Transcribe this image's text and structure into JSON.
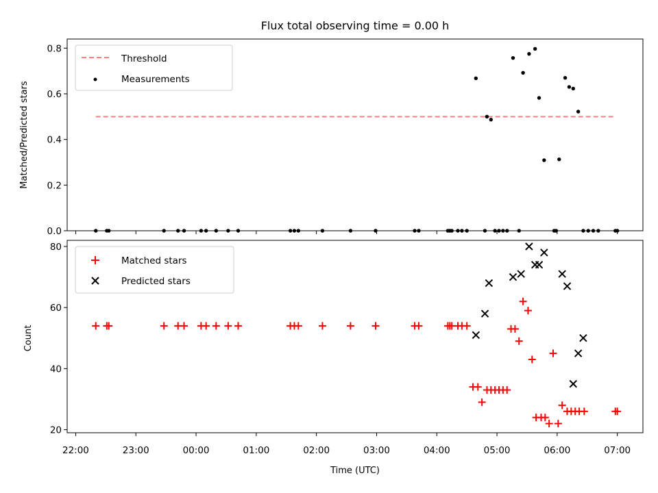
{
  "figure": {
    "title": "Flux total observing time = 0.00 h",
    "x_label": "Time (UTC)"
  },
  "colors": {
    "threshold": "#ff7f7f",
    "measurement": "#000000",
    "matched": "#ff0000",
    "predicted": "#000000",
    "axis": "#000000",
    "legend_border": "#cccccc"
  },
  "chart_data": [
    {
      "type": "scatter",
      "name": "ratio-panel",
      "ylabel": "Matched/Predicted stars",
      "xlabel": "",
      "xlim": [
        "22:00",
        "07:00"
      ],
      "ylim": [
        0,
        0.84
      ],
      "yticks": [
        0.0,
        0.2,
        0.4,
        0.6,
        0.8
      ],
      "ytick_labels": [
        "0.0",
        "0.2",
        "0.4",
        "0.6",
        "0.8"
      ],
      "grid": false,
      "legend_position": "top-left",
      "legend": [
        "Threshold",
        "Measurements"
      ],
      "threshold": {
        "name": "Threshold",
        "value": 0.5,
        "x_range": [
          "22:20",
          "06:58"
        ]
      },
      "series": [
        {
          "name": "Measurements",
          "points": [
            [
              "22:20",
              0.0
            ],
            [
              "22:31",
              0.0
            ],
            [
              "22:33",
              0.0
            ],
            [
              "23:28",
              0.0
            ],
            [
              "23:42",
              0.0
            ],
            [
              "23:48",
              0.0
            ],
            [
              "00:05",
              0.0
            ],
            [
              "00:10",
              0.0
            ],
            [
              "00:20",
              0.0
            ],
            [
              "00:32",
              0.0
            ],
            [
              "00:42",
              0.0
            ],
            [
              "01:34",
              0.0
            ],
            [
              "01:38",
              0.0
            ],
            [
              "01:42",
              0.0
            ],
            [
              "02:06",
              0.0
            ],
            [
              "02:34",
              0.0
            ],
            [
              "02:59",
              0.0
            ],
            [
              "03:38",
              0.0
            ],
            [
              "03:42",
              0.0
            ],
            [
              "04:11",
              0.0
            ],
            [
              "04:13",
              0.0
            ],
            [
              "04:15",
              0.0
            ],
            [
              "04:21",
              0.0
            ],
            [
              "04:25",
              0.0
            ],
            [
              "04:30",
              0.0
            ],
            [
              "04:39",
              0.668
            ],
            [
              "04:48",
              0.0
            ],
            [
              "04:50",
              0.5
            ],
            [
              "04:54",
              0.487
            ],
            [
              "04:58",
              0.0
            ],
            [
              "05:02",
              0.0
            ],
            [
              "05:06",
              0.0
            ],
            [
              "05:10",
              0.0
            ],
            [
              "05:16",
              0.757
            ],
            [
              "05:22",
              0.0
            ],
            [
              "05:26",
              0.692
            ],
            [
              "05:32",
              0.775
            ],
            [
              "05:38",
              0.797
            ],
            [
              "05:42",
              0.582
            ],
            [
              "05:47",
              0.309
            ],
            [
              "05:57",
              0.0
            ],
            [
              "05:59",
              0.0
            ],
            [
              "06:02",
              0.313
            ],
            [
              "06:08",
              0.67
            ],
            [
              "06:12",
              0.63
            ],
            [
              "06:16",
              0.623
            ],
            [
              "06:21",
              0.522
            ],
            [
              "06:26",
              0.0
            ],
            [
              "06:31",
              0.0
            ],
            [
              "06:36",
              0.0
            ],
            [
              "06:41",
              0.0
            ],
            [
              "06:58",
              0.0
            ],
            [
              "07:00",
              0.0
            ]
          ]
        }
      ]
    },
    {
      "type": "scatter",
      "name": "count-panel",
      "ylabel": "Count",
      "xlabel": "Time (UTC)",
      "xlim": [
        "22:00",
        "07:00"
      ],
      "ylim": [
        19,
        82
      ],
      "yticks": [
        20,
        40,
        60,
        80
      ],
      "ytick_labels": [
        "20",
        "40",
        "60",
        "80"
      ],
      "xticks": [
        "22:00",
        "23:00",
        "00:00",
        "01:00",
        "02:00",
        "03:00",
        "04:00",
        "05:00",
        "06:00",
        "07:00"
      ],
      "grid": false,
      "legend_position": "top-left",
      "legend": [
        "Matched stars",
        "Predicted stars"
      ],
      "series": [
        {
          "name": "Matched stars",
          "marker": "plus",
          "points": [
            [
              "22:20",
              54
            ],
            [
              "22:31",
              54
            ],
            [
              "22:33",
              54
            ],
            [
              "23:28",
              54
            ],
            [
              "23:42",
              54
            ],
            [
              "23:48",
              54
            ],
            [
              "00:05",
              54
            ],
            [
              "00:10",
              54
            ],
            [
              "00:20",
              54
            ],
            [
              "00:32",
              54
            ],
            [
              "00:42",
              54
            ],
            [
              "01:34",
              54
            ],
            [
              "01:38",
              54
            ],
            [
              "01:42",
              54
            ],
            [
              "02:06",
              54
            ],
            [
              "02:34",
              54
            ],
            [
              "02:59",
              54
            ],
            [
              "03:38",
              54
            ],
            [
              "03:42",
              54
            ],
            [
              "04:11",
              54
            ],
            [
              "04:13",
              54
            ],
            [
              "04:15",
              54
            ],
            [
              "04:21",
              54
            ],
            [
              "04:25",
              54
            ],
            [
              "04:30",
              54
            ],
            [
              "04:36",
              34
            ],
            [
              "04:41",
              34
            ],
            [
              "04:45",
              29
            ],
            [
              "04:50",
              33
            ],
            [
              "04:54",
              33
            ],
            [
              "04:58",
              33
            ],
            [
              "05:02",
              33
            ],
            [
              "05:06",
              33
            ],
            [
              "05:10",
              33
            ],
            [
              "05:14",
              53
            ],
            [
              "05:18",
              53
            ],
            [
              "05:22",
              49
            ],
            [
              "05:26",
              62
            ],
            [
              "05:31",
              59
            ],
            [
              "05:35",
              43
            ],
            [
              "05:39",
              24
            ],
            [
              "05:44",
              24
            ],
            [
              "05:48",
              24
            ],
            [
              "05:52",
              22
            ],
            [
              "05:56",
              45
            ],
            [
              "06:01",
              22
            ],
            [
              "06:05",
              28
            ],
            [
              "06:10",
              26
            ],
            [
              "06:14",
              26
            ],
            [
              "06:18",
              26
            ],
            [
              "06:22",
              26
            ],
            [
              "06:27",
              26
            ],
            [
              "06:58",
              26
            ],
            [
              "07:00",
              26
            ]
          ]
        },
        {
          "name": "Predicted stars",
          "marker": "x",
          "points": [
            [
              "04:39",
              51
            ],
            [
              "04:48",
              58
            ],
            [
              "04:52",
              68
            ],
            [
              "05:16",
              70
            ],
            [
              "05:24",
              71
            ],
            [
              "05:32",
              80
            ],
            [
              "05:38",
              74
            ],
            [
              "05:42",
              74
            ],
            [
              "05:47",
              78
            ],
            [
              "06:05",
              71
            ],
            [
              "06:10",
              67
            ],
            [
              "06:16",
              35
            ],
            [
              "06:21",
              45
            ],
            [
              "06:26",
              50
            ]
          ]
        }
      ]
    }
  ]
}
